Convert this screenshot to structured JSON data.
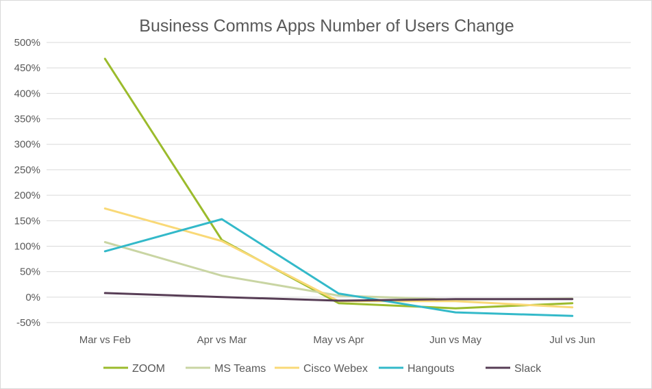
{
  "chart_data": {
    "type": "line",
    "title": "Business Comms Apps Number of Users Change",
    "xlabel": "",
    "ylabel": "",
    "categories": [
      "Mar vs Feb",
      "Apr vs Mar",
      "May vs Apr",
      "Jun vs May",
      "Jul vs Jun"
    ],
    "ylim": [
      -50,
      500
    ],
    "yticks": [
      "500%",
      "450%",
      "400%",
      "350%",
      "300%",
      "250%",
      "200%",
      "150%",
      "100%",
      "50%",
      "0%",
      "-50%"
    ],
    "grid": true,
    "legend_position": "bottom",
    "series": [
      {
        "name": "ZOOM",
        "color": "#9bbb2c",
        "values": [
          468,
          112,
          -12,
          -22,
          -12
        ]
      },
      {
        "name": "MS Teams",
        "color": "#c9d5a3",
        "values": [
          108,
          42,
          3,
          -5,
          -3
        ]
      },
      {
        "name": "Cisco Webex",
        "color": "#f9d977",
        "values": [
          174,
          110,
          -8,
          -8,
          -20
        ]
      },
      {
        "name": "Hangouts",
        "color": "#33b9c9",
        "values": [
          90,
          153,
          7,
          -30,
          -37
        ]
      },
      {
        "name": "Slack",
        "color": "#573d55",
        "values": [
          8,
          0,
          -7,
          -4,
          -4
        ]
      }
    ]
  }
}
